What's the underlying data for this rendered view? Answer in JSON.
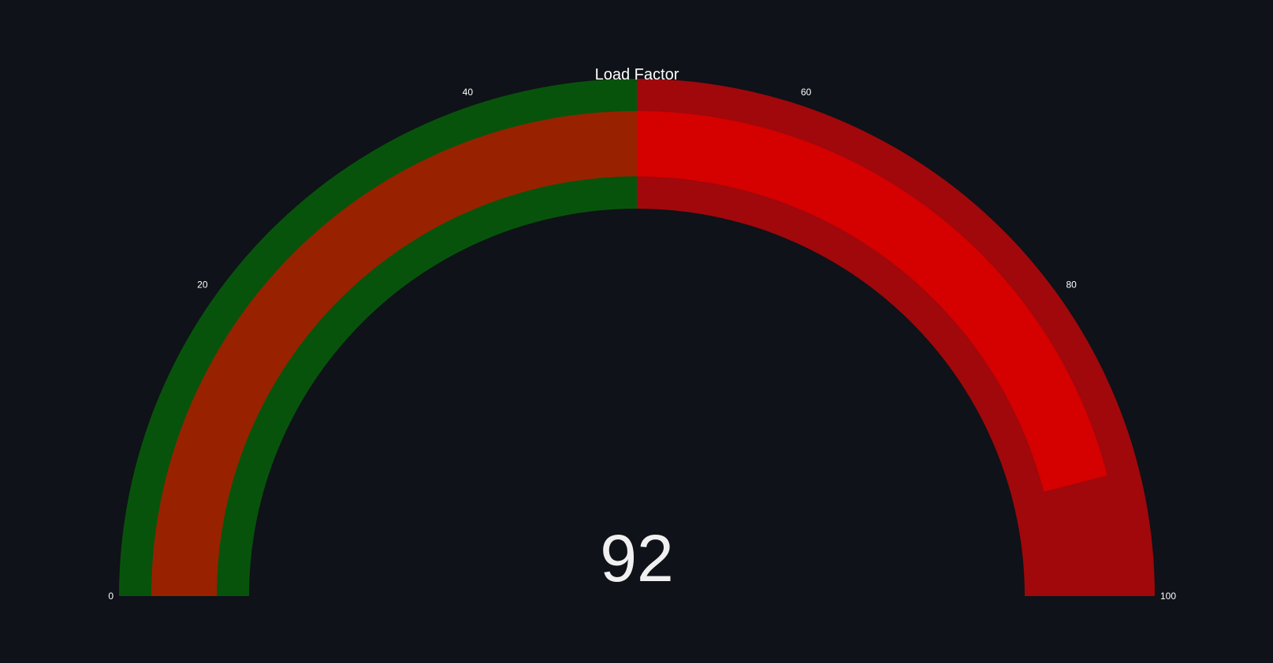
{
  "chart_data": {
    "type": "gauge",
    "title": "Load Factor",
    "value": 92,
    "value_label": "92",
    "range": [
      0,
      100
    ],
    "ticks": [
      {
        "value": 0,
        "label": "0"
      },
      {
        "value": 20,
        "label": "20"
      },
      {
        "value": 40,
        "label": "40"
      },
      {
        "value": 60,
        "label": "60"
      },
      {
        "value": 80,
        "label": "80"
      },
      {
        "value": 100,
        "label": "100"
      }
    ],
    "steps": [
      {
        "range": [
          0,
          50
        ],
        "color": "#08530c"
      },
      {
        "range": [
          50,
          100
        ],
        "color": "#a0080b"
      }
    ],
    "bar": {
      "color_low": "#982200",
      "color_high": "#d50000",
      "split_at": 50
    },
    "background_color": "#0f1218"
  }
}
